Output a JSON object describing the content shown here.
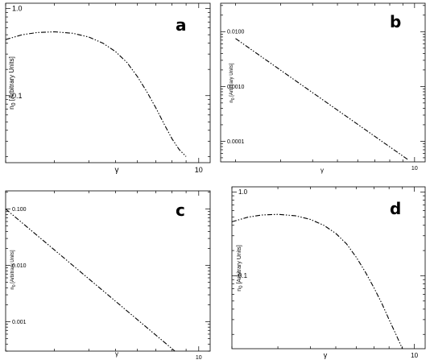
{
  "chart_data": [
    {
      "panel": "a",
      "type": "line",
      "xscale": "log",
      "yscale": "log",
      "xlabel": "γ",
      "ylabel": "n",
      "ylabel_sub": "0",
      "ylabel_suffix": " [Arbitrary Units]",
      "xlim": [
        2.0,
        11.0
      ],
      "ylim": [
        0.017,
        1.15
      ],
      "x_ticks": [
        {
          "v": 10,
          "label": "10"
        }
      ],
      "y_ticks": [
        {
          "v": 1.0,
          "label": "1.0"
        },
        {
          "v": 0.1,
          "label": "0.1"
        }
      ],
      "line_style": "dash-dot-dot",
      "grid": false,
      "series": [
        {
          "x": [
            2.0,
            2.3,
            2.6,
            3.0,
            3.5,
            4.0,
            4.5,
            5.0,
            5.5,
            6.0,
            6.5,
            7.0,
            7.5,
            8.0,
            8.5,
            9.0
          ],
          "y": [
            0.44,
            0.5,
            0.53,
            0.54,
            0.52,
            0.47,
            0.4,
            0.32,
            0.24,
            0.165,
            0.11,
            0.072,
            0.047,
            0.032,
            0.024,
            0.02
          ]
        }
      ]
    },
    {
      "panel": "b",
      "type": "line",
      "xscale": "log",
      "yscale": "log",
      "xlabel": "γ",
      "ylabel": "n",
      "ylabel_sub": "0",
      "ylabel_suffix": " [Arbitrary Units]",
      "xlim": [
        1.75,
        11.0
      ],
      "ylim": [
        4.21e-05,
        0.033
      ],
      "x_ticks": [
        {
          "v": 10,
          "label": "10"
        }
      ],
      "y_ticks": [
        {
          "v": 0.01,
          "label": "0.0100"
        },
        {
          "v": 0.001,
          "label": "0.0010"
        },
        {
          "v": 0.0001,
          "label": "0.0001"
        }
      ],
      "line_style": "dash-dot-dot",
      "grid": false,
      "series": [
        {
          "x": [
            2.0,
            9.5
          ],
          "y": [
            0.0075,
            4.5e-05
          ]
        }
      ]
    },
    {
      "panel": "c",
      "type": "line",
      "xscale": "log",
      "yscale": "log",
      "xlabel": "γ",
      "ylabel": "n",
      "ylabel_sub": "0",
      "ylabel_suffix": " [Arbitrary Units]",
      "xlim": [
        2.0,
        11.0
      ],
      "ylim": [
        0.0003,
        0.21
      ],
      "x_ticks": [
        {
          "v": 10,
          "label": "10"
        }
      ],
      "y_ticks": [
        {
          "v": 0.1,
          "label": "0.100"
        },
        {
          "v": 0.01,
          "label": "0.010"
        },
        {
          "v": 0.001,
          "label": "0.001"
        }
      ],
      "line_style": "dash-dot-dot",
      "grid": false,
      "series": [
        {
          "x": [
            2.0,
            8.2
          ],
          "y": [
            0.1,
            0.0003
          ]
        }
      ]
    },
    {
      "panel": "d",
      "type": "line",
      "xscale": "log",
      "yscale": "log",
      "xlabel": "γ",
      "ylabel": "n",
      "ylabel_sub": "0",
      "ylabel_suffix": " [Arbitrary Units]",
      "xlim": [
        2.0,
        11.0
      ],
      "ylim": [
        0.0135,
        1.15
      ],
      "x_ticks": [
        {
          "v": 10,
          "label": "10"
        }
      ],
      "y_ticks": [
        {
          "v": 1.0,
          "label": "1.0"
        },
        {
          "v": 0.1,
          "label": "0.1"
        }
      ],
      "line_style": "dash-dot-dot",
      "grid": false,
      "series": [
        {
          "x": [
            2.0,
            2.3,
            2.6,
            3.0,
            3.5,
            4.0,
            4.5,
            5.0,
            5.5,
            6.0,
            6.5,
            7.0,
            7.5,
            8.0,
            8.5,
            9.0
          ],
          "y": [
            0.44,
            0.5,
            0.53,
            0.54,
            0.52,
            0.47,
            0.4,
            0.32,
            0.24,
            0.165,
            0.11,
            0.072,
            0.047,
            0.03,
            0.02,
            0.0135
          ]
        }
      ]
    }
  ]
}
